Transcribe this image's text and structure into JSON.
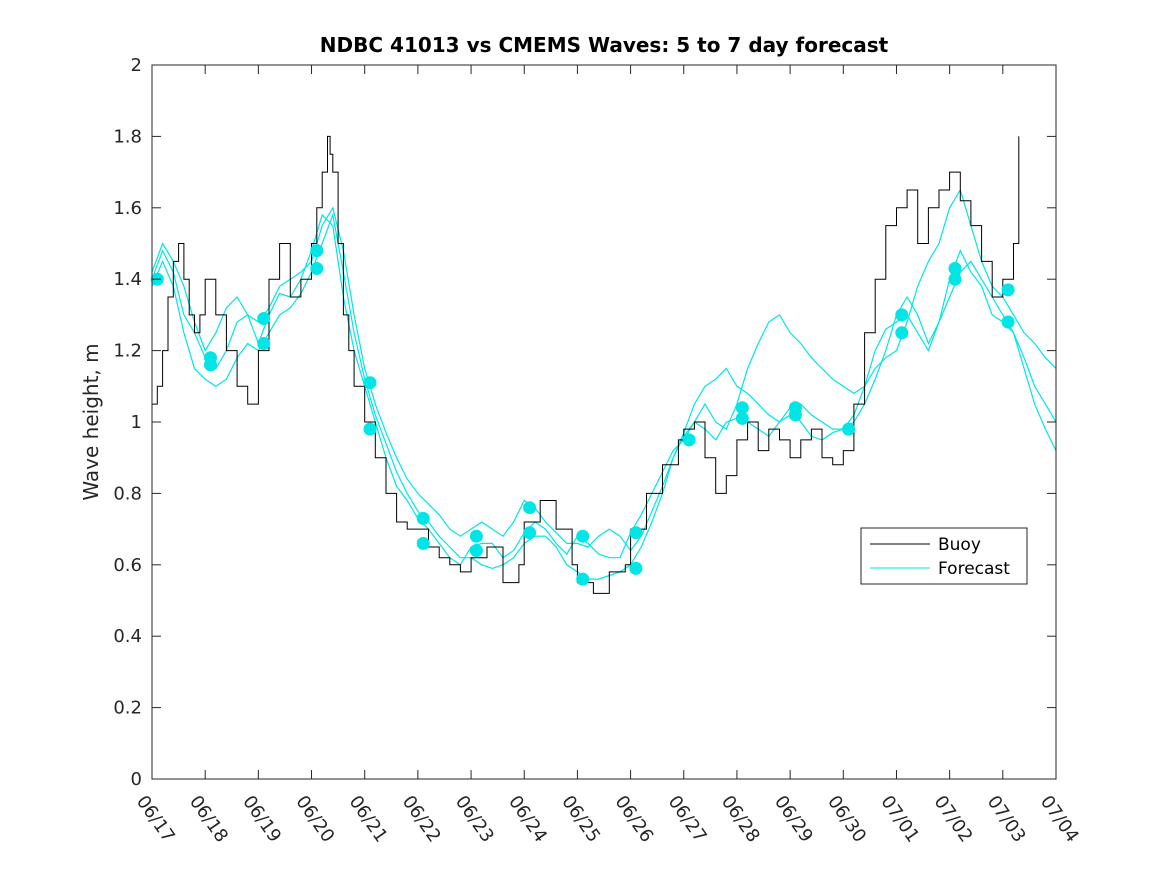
{
  "chart_data": {
    "type": "line",
    "title": "NDBC 41013 vs CMEMS Waves: 5 to 7 day forecast",
    "xlabel": "",
    "ylabel": "Wave height, m",
    "xlim": [
      0,
      17
    ],
    "ylim": [
      0,
      2
    ],
    "x_tick_labels": [
      "06/17",
      "06/18",
      "06/19",
      "06/20",
      "06/21",
      "06/22",
      "06/23",
      "06/24",
      "06/25",
      "06/26",
      "06/27",
      "06/28",
      "06/29",
      "06/30",
      "07/01",
      "07/02",
      "07/03",
      "07/04"
    ],
    "y_ticks": [
      0,
      0.2,
      0.4,
      0.6,
      0.8,
      1,
      1.2,
      1.4,
      1.6,
      1.8,
      2
    ],
    "y_tick_labels": [
      "0",
      "0.2",
      "0.4",
      "0.6",
      "0.8",
      "1",
      "1.2",
      "1.4",
      "1.6",
      "1.8",
      "2"
    ],
    "grid": false,
    "legend": {
      "position": "lower-right",
      "entries": [
        "Buoy",
        "Forecast"
      ]
    },
    "colors": {
      "buoy": "#000000",
      "forecast": "#00e5e5"
    },
    "buoy": {
      "x": [
        0,
        0.1,
        0.2,
        0.3,
        0.4,
        0.5,
        0.6,
        0.7,
        0.8,
        0.9,
        1.0,
        1.2,
        1.4,
        1.6,
        1.8,
        2.0,
        2.2,
        2.4,
        2.6,
        2.8,
        3.0,
        3.1,
        3.2,
        3.3,
        3.35,
        3.4,
        3.5,
        3.6,
        3.7,
        3.8,
        4.0,
        4.2,
        4.4,
        4.6,
        4.8,
        5.0,
        5.2,
        5.4,
        5.6,
        5.8,
        6.0,
        6.3,
        6.6,
        6.9,
        7.0,
        7.3,
        7.6,
        7.9,
        8.0,
        8.3,
        8.6,
        8.9,
        9.0,
        9.3,
        9.6,
        9.9,
        10.0,
        10.2,
        10.4,
        10.6,
        10.8,
        11.0,
        11.2,
        11.4,
        11.6,
        11.8,
        12.0,
        12.2,
        12.4,
        12.6,
        12.8,
        13.0,
        13.2,
        13.4,
        13.6,
        13.8,
        14.0,
        14.2,
        14.4,
        14.6,
        14.8,
        15.0,
        15.2,
        15.4,
        15.6,
        15.8,
        16.0,
        16.2,
        16.3
      ],
      "y": [
        1.05,
        1.1,
        1.2,
        1.35,
        1.45,
        1.5,
        1.4,
        1.3,
        1.25,
        1.3,
        1.4,
        1.3,
        1.2,
        1.1,
        1.05,
        1.2,
        1.4,
        1.5,
        1.35,
        1.4,
        1.5,
        1.6,
        1.7,
        1.8,
        1.75,
        1.7,
        1.5,
        1.3,
        1.2,
        1.1,
        1.0,
        0.9,
        0.8,
        0.72,
        0.7,
        0.7,
        0.65,
        0.62,
        0.6,
        0.58,
        0.62,
        0.65,
        0.55,
        0.6,
        0.72,
        0.78,
        0.7,
        0.6,
        0.55,
        0.52,
        0.58,
        0.6,
        0.7,
        0.8,
        0.88,
        0.95,
        0.98,
        1.0,
        0.9,
        0.8,
        0.85,
        0.95,
        1.0,
        0.92,
        0.98,
        0.95,
        0.9,
        0.95,
        0.98,
        0.9,
        0.88,
        0.92,
        1.05,
        1.25,
        1.4,
        1.55,
        1.6,
        1.65,
        1.5,
        1.6,
        1.65,
        1.7,
        1.62,
        1.55,
        1.45,
        1.35,
        1.4,
        1.5,
        1.8
      ]
    },
    "series": [
      {
        "x": [
          0,
          0.2,
          0.4,
          0.6,
          0.8,
          1.0,
          1.2,
          1.4,
          1.6,
          1.8,
          2.0,
          2.2,
          2.4,
          2.6,
          2.8,
          3.0,
          3.2,
          3.4,
          3.6,
          3.8,
          4.0,
          4.2,
          4.4,
          4.6,
          4.8,
          5.0,
          5.2,
          5.4,
          5.6,
          5.8,
          6.0,
          6.2,
          6.4,
          6.6,
          6.8,
          7.0,
          7.2,
          7.4,
          7.6,
          7.8,
          8.0,
          8.2,
          8.4,
          8.6,
          8.8,
          9.0,
          9.2,
          9.4,
          9.6,
          9.8,
          10.0,
          10.2,
          10.4,
          10.6,
          10.8,
          11.0,
          11.2,
          11.4,
          11.6,
          11.8,
          12.0,
          12.2,
          12.4,
          12.6,
          12.8,
          13.0,
          13.2,
          13.4,
          13.6,
          13.8,
          14.0,
          14.2,
          14.4,
          14.6,
          14.8,
          15.0,
          15.2,
          15.4,
          15.6,
          15.8,
          16.0,
          16.2,
          16.4,
          16.6,
          16.8,
          17.0
        ],
        "y": [
          1.4,
          1.48,
          1.42,
          1.3,
          1.25,
          1.18,
          1.15,
          1.2,
          1.28,
          1.3,
          1.22,
          1.3,
          1.36,
          1.35,
          1.4,
          1.48,
          1.58,
          1.55,
          1.35,
          1.2,
          1.1,
          1.0,
          0.9,
          0.82,
          0.78,
          0.73,
          0.7,
          0.66,
          0.62,
          0.6,
          0.65,
          0.66,
          0.66,
          0.62,
          0.64,
          0.69,
          0.72,
          0.7,
          0.66,
          0.63,
          0.68,
          0.66,
          0.63,
          0.62,
          0.62,
          0.69,
          0.74,
          0.8,
          0.86,
          0.92,
          0.95,
          1.0,
          0.98,
          0.95,
          1.0,
          1.01,
          1.0,
          0.98,
          0.96,
          1.0,
          1.04,
          1.0,
          0.96,
          0.95,
          0.97,
          0.98,
          1.0,
          1.05,
          1.12,
          1.2,
          1.3,
          1.35,
          1.3,
          1.22,
          1.28,
          1.4,
          1.48,
          1.42,
          1.38,
          1.3,
          1.28,
          1.25,
          1.18,
          1.1,
          1.05,
          1.0
        ]
      },
      {
        "x": [
          0,
          0.2,
          0.4,
          0.6,
          0.8,
          1.0,
          1.2,
          1.4,
          1.6,
          1.8,
          2.0,
          2.2,
          2.4,
          2.6,
          2.8,
          3.0,
          3.2,
          3.4,
          3.6,
          3.8,
          4.0,
          4.2,
          4.4,
          4.6,
          4.8,
          5.0,
          5.2,
          5.4,
          5.6,
          5.8,
          6.0,
          6.2,
          6.4,
          6.6,
          6.8,
          7.0,
          7.2,
          7.4,
          7.6,
          7.8,
          8.0,
          8.2,
          8.4,
          8.6,
          8.8,
          9.0,
          9.2,
          9.4,
          9.6,
          9.8,
          10.0,
          10.2,
          10.4,
          10.6,
          10.8,
          11.0,
          11.2,
          11.4,
          11.6,
          11.8,
          12.0,
          12.2,
          12.4,
          12.6,
          12.8,
          13.0,
          13.2,
          13.4,
          13.6,
          13.8,
          14.0,
          14.2,
          14.4,
          14.6,
          14.8,
          15.0,
          15.2,
          15.4,
          15.6,
          15.8,
          16.0,
          16.2,
          16.4,
          16.6,
          16.8,
          17.0
        ],
        "y": [
          1.38,
          1.45,
          1.38,
          1.25,
          1.15,
          1.12,
          1.1,
          1.12,
          1.18,
          1.22,
          1.2,
          1.25,
          1.3,
          1.32,
          1.36,
          1.42,
          1.5,
          1.58,
          1.42,
          1.25,
          1.12,
          1.02,
          0.94,
          0.86,
          0.8,
          0.75,
          0.72,
          0.68,
          0.65,
          0.62,
          0.62,
          0.6,
          0.59,
          0.6,
          0.62,
          0.66,
          0.68,
          0.68,
          0.65,
          0.6,
          0.58,
          0.56,
          0.56,
          0.57,
          0.58,
          0.6,
          0.65,
          0.72,
          0.8,
          0.9,
          0.97,
          1.05,
          1.1,
          1.12,
          1.15,
          1.1,
          1.08,
          1.05,
          1.02,
          1.0,
          1.02,
          1.05,
          1.02,
          1.0,
          0.98,
          0.98,
          1.02,
          1.1,
          1.2,
          1.26,
          1.28,
          1.3,
          1.25,
          1.2,
          1.28,
          1.35,
          1.42,
          1.45,
          1.4,
          1.35,
          1.3,
          1.25,
          1.15,
          1.05,
          0.98,
          0.92
        ]
      },
      {
        "x": [
          0,
          0.2,
          0.4,
          0.6,
          0.8,
          1.0,
          1.2,
          1.4,
          1.6,
          1.8,
          2.0,
          2.2,
          2.4,
          2.6,
          2.8,
          3.0,
          3.2,
          3.4,
          3.6,
          3.8,
          4.0,
          4.2,
          4.4,
          4.6,
          4.8,
          5.0,
          5.2,
          5.4,
          5.6,
          5.8,
          6.0,
          6.2,
          6.4,
          6.6,
          6.8,
          7.0,
          7.2,
          7.4,
          7.6,
          7.8,
          8.0,
          8.2,
          8.4,
          8.6,
          8.8,
          9.0,
          9.2,
          9.4,
          9.6,
          9.8,
          10.0,
          10.2,
          10.4,
          10.6,
          10.8,
          11.0,
          11.2,
          11.4,
          11.6,
          11.8,
          12.0,
          12.2,
          12.4,
          12.6,
          12.8,
          13.0,
          13.2,
          13.4,
          13.6,
          13.8,
          14.0,
          14.2,
          14.4,
          14.6,
          14.8,
          15.0,
          15.2,
          15.4,
          15.6,
          15.8,
          16.0,
          16.2,
          16.4,
          16.6,
          16.8,
          17.0
        ],
        "y": [
          1.42,
          1.5,
          1.45,
          1.38,
          1.28,
          1.2,
          1.25,
          1.32,
          1.35,
          1.3,
          1.28,
          1.32,
          1.38,
          1.4,
          1.42,
          1.45,
          1.55,
          1.6,
          1.48,
          1.3,
          1.15,
          1.05,
          0.97,
          0.9,
          0.84,
          0.8,
          0.77,
          0.74,
          0.7,
          0.68,
          0.7,
          0.72,
          0.7,
          0.68,
          0.72,
          0.78,
          0.76,
          0.72,
          0.69,
          0.66,
          0.66,
          0.65,
          0.68,
          0.7,
          0.68,
          0.64,
          0.68,
          0.75,
          0.82,
          0.9,
          0.96,
          1.0,
          1.05,
          1.0,
          0.98,
          1.05,
          1.15,
          1.22,
          1.28,
          1.3,
          1.25,
          1.22,
          1.18,
          1.15,
          1.12,
          1.1,
          1.08,
          1.1,
          1.15,
          1.18,
          1.2,
          1.28,
          1.38,
          1.45,
          1.5,
          1.6,
          1.65,
          1.55,
          1.45,
          1.38,
          1.35,
          1.3,
          1.25,
          1.22,
          1.18,
          1.15
        ]
      }
    ],
    "markers": {
      "x": [
        0.1,
        1.1,
        1.1,
        2.1,
        2.1,
        3.1,
        3.1,
        4.1,
        4.1,
        5.1,
        5.1,
        6.1,
        6.1,
        7.1,
        7.1,
        8.1,
        8.1,
        9.1,
        9.1,
        10.1,
        11.1,
        11.1,
        12.1,
        12.1,
        13.1,
        14.1,
        14.1,
        15.1,
        15.1,
        16.1,
        16.1
      ],
      "y": [
        1.4,
        1.18,
        1.16,
        1.29,
        1.22,
        1.48,
        1.43,
        1.11,
        0.98,
        0.73,
        0.66,
        0.68,
        0.64,
        0.76,
        0.69,
        0.68,
        0.56,
        0.69,
        0.59,
        0.95,
        1.04,
        1.01,
        1.04,
        1.02,
        0.98,
        1.3,
        1.25,
        1.43,
        1.4,
        1.37,
        1.28
      ]
    }
  }
}
